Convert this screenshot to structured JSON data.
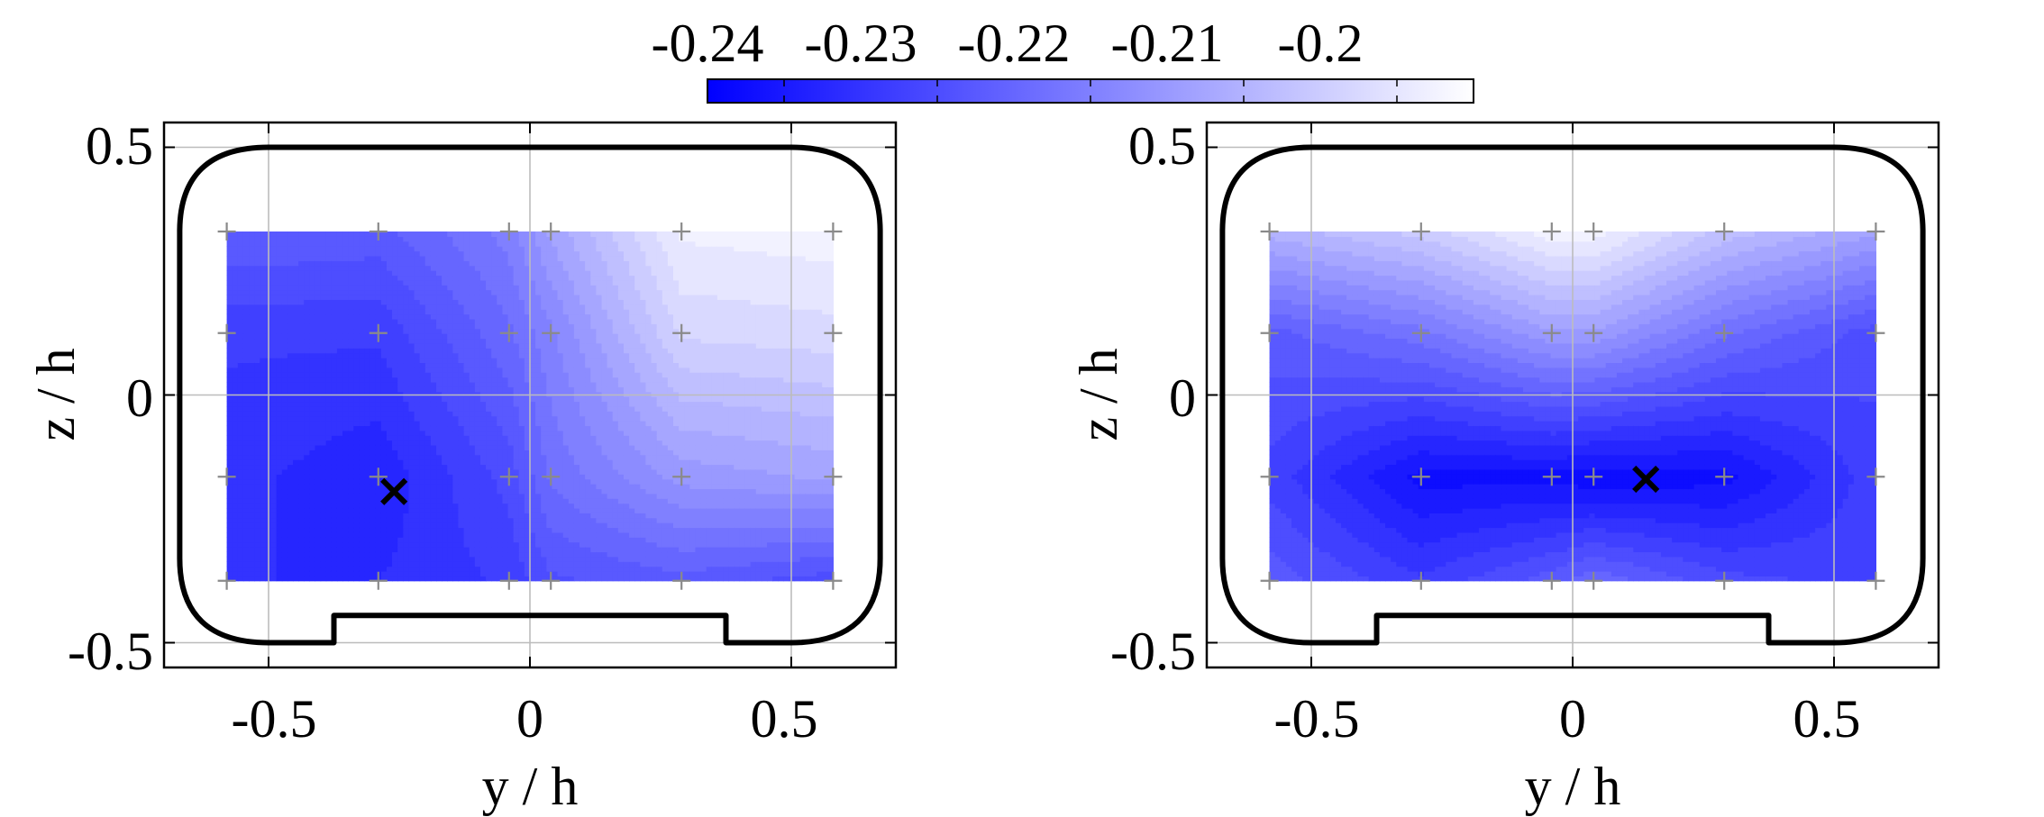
{
  "colorbar": {
    "tick_labels": [
      "-0.24",
      "-0.23",
      "-0.22",
      "-0.21",
      "-0.2"
    ],
    "tick_values": [
      -0.24,
      -0.23,
      -0.22,
      -0.21,
      -0.2
    ],
    "range": [
      -0.245,
      -0.195
    ],
    "color_low": "#0000ff",
    "color_high": "#ffffff"
  },
  "chart_data": [
    {
      "type": "contour",
      "title": "",
      "xlabel": "y / h",
      "ylabel": "z / h",
      "xlim": [
        -0.7,
        0.7
      ],
      "ylim": [
        -0.55,
        0.55
      ],
      "x_ticks": [
        -0.5,
        0,
        0.5
      ],
      "x_tick_labels": [
        "-0.5",
        "0",
        "0.5"
      ],
      "y_ticks": [
        -0.5,
        0,
        0.5
      ],
      "y_tick_labels": [
        "-0.5",
        "0",
        "0.5"
      ],
      "grid": true,
      "measurement_y": [
        -0.58,
        -0.29,
        -0.04,
        0.04,
        0.29,
        0.58
      ],
      "measurement_z": [
        0.33,
        0.125,
        -0.165,
        -0.375
      ],
      "field_values": [
        [
          -0.225,
          -0.226,
          -0.219,
          -0.212,
          -0.197,
          -0.196
        ],
        [
          -0.232,
          -0.232,
          -0.223,
          -0.218,
          -0.202,
          -0.201
        ],
        [
          -0.234,
          -0.237,
          -0.229,
          -0.222,
          -0.214,
          -0.212
        ],
        [
          -0.235,
          -0.235,
          -0.232,
          -0.228,
          -0.226,
          -0.229
        ]
      ],
      "minimum_marker": {
        "y": -0.26,
        "z": -0.195
      },
      "outline_color": "#000000"
    },
    {
      "type": "contour",
      "title": "",
      "xlabel": "y / h",
      "ylabel": "z / h",
      "xlim": [
        -0.7,
        0.7
      ],
      "ylim": [
        -0.55,
        0.55
      ],
      "x_ticks": [
        -0.5,
        0,
        0.5
      ],
      "x_tick_labels": [
        "-0.5",
        "0",
        "0.5"
      ],
      "y_ticks": [
        -0.5,
        0,
        0.5
      ],
      "y_tick_labels": [
        "-0.5",
        "0",
        "0.5"
      ],
      "grid": true,
      "measurement_y": [
        -0.58,
        -0.29,
        -0.04,
        0.04,
        0.29,
        0.58
      ],
      "measurement_z": [
        0.33,
        0.125,
        -0.165,
        -0.375
      ],
      "field_values": [
        [
          -0.209,
          -0.204,
          -0.196,
          -0.196,
          -0.206,
          -0.212
        ],
        [
          -0.226,
          -0.221,
          -0.213,
          -0.213,
          -0.222,
          -0.229
        ],
        [
          -0.231,
          -0.241,
          -0.241,
          -0.242,
          -0.241,
          -0.231
        ],
        [
          -0.226,
          -0.232,
          -0.226,
          -0.223,
          -0.229,
          -0.231
        ]
      ],
      "minimum_marker": {
        "y": 0.14,
        "z": -0.17
      },
      "outline_color": "#000000"
    }
  ]
}
